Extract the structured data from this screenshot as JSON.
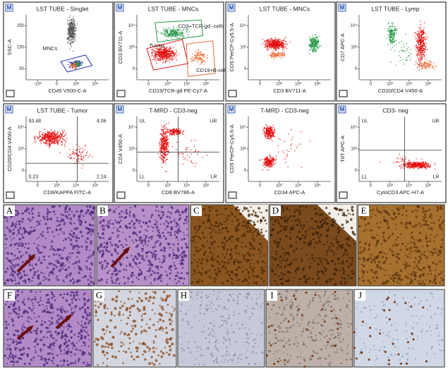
{
  "flow_panels": [
    {
      "badge": "M",
      "title": "LST TUBE - Singlet",
      "x_label": "CD45 V500-C-A",
      "y_label": "SSC-A",
      "x_ticks": [
        "-10³",
        "0",
        "10³",
        "10⁴"
      ],
      "y_ticks": [
        "250",
        "150",
        "50"
      ],
      "gates": [
        "MNCs"
      ],
      "quadrants": []
    },
    {
      "badge": "M",
      "title": "LST TUBE - MNCs",
      "x_label": "CD19/TCR-gd PE-Cy7-A",
      "y_label": "CD3 BV711-A",
      "x_ticks": [
        "0",
        "10³",
        "10⁴",
        "10⁵"
      ],
      "y_ticks": [
        "10⁴",
        "10³",
        "0"
      ],
      "gates": [
        "CD3+TCR-gd -cells",
        "Tumor",
        "CD19+B-cells"
      ],
      "quadrants": []
    },
    {
      "badge": "M",
      "title": "LST TUBE - MNCs",
      "x_label": "CD3 BV711-A",
      "y_label": "CD5 PerCP-Cy5.5-A",
      "x_ticks": [
        "0",
        "10³",
        "10⁴",
        "10⁵"
      ],
      "y_ticks": [
        "10⁴",
        "10³",
        "0"
      ],
      "gates": [],
      "quadrants": []
    },
    {
      "badge": "M",
      "title": "LST TUBE - Lymp",
      "x_label": "CD20/CD4 V450-A",
      "y_label": "CD7 APC-A",
      "x_ticks": [
        "0",
        "10³",
        "10⁴",
        "10⁵"
      ],
      "y_ticks": [
        "10⁴",
        "10³",
        "0"
      ],
      "gates": [],
      "quadrants": []
    },
    {
      "badge": "M",
      "title": "LST TUBE - Tumor",
      "x_label": "CD8/KAPPA FITC-A",
      "y_label": "CD20/CD4 V450-A",
      "x_ticks": [
        "0",
        "10³",
        "10⁴",
        "10⁵"
      ],
      "y_ticks": [
        "10⁴",
        "10³",
        "0"
      ],
      "gates": [],
      "quadrants": [
        "93.48",
        "4.06",
        "0.23",
        "2.24"
      ]
    },
    {
      "badge": "M",
      "title": "T-MRD - CD3-neg",
      "x_label": "CD8 BV786-A",
      "y_label": "CD4 V450-A",
      "x_ticks": [
        "0",
        "10³",
        "10⁴",
        "10⁵"
      ],
      "y_ticks": [
        "10⁴",
        "10³",
        "0"
      ],
      "gates": [],
      "quadrants": [
        "UL",
        "UR",
        "LL",
        "LR"
      ]
    },
    {
      "badge": "M",
      "title": "T-MRD - CD3-neg",
      "x_label": "CD34 APC-A",
      "y_label": "CD5 PerCP-Cy5.5-A",
      "x_ticks": [
        "0",
        "10³",
        "10⁴",
        "10⁵"
      ],
      "y_ticks": [
        "10⁴",
        "10³",
        "0"
      ],
      "gates": [],
      "quadrants": []
    },
    {
      "badge": "M",
      "title": "CD3- neg",
      "x_label": "CytoCD3 APC-H7-A",
      "y_label": "TdT APC-A",
      "x_ticks": [
        "0",
        "10³",
        "10⁴",
        "10⁵"
      ],
      "y_ticks": [
        "10⁴",
        "10³",
        "0"
      ],
      "gates": [],
      "quadrants": [
        "UL",
        "UR",
        "LL",
        "LR"
      ]
    }
  ],
  "histology_panels": [
    "A",
    "B",
    "C",
    "D",
    "E",
    "F",
    "G",
    "H",
    "I",
    "J"
  ]
}
